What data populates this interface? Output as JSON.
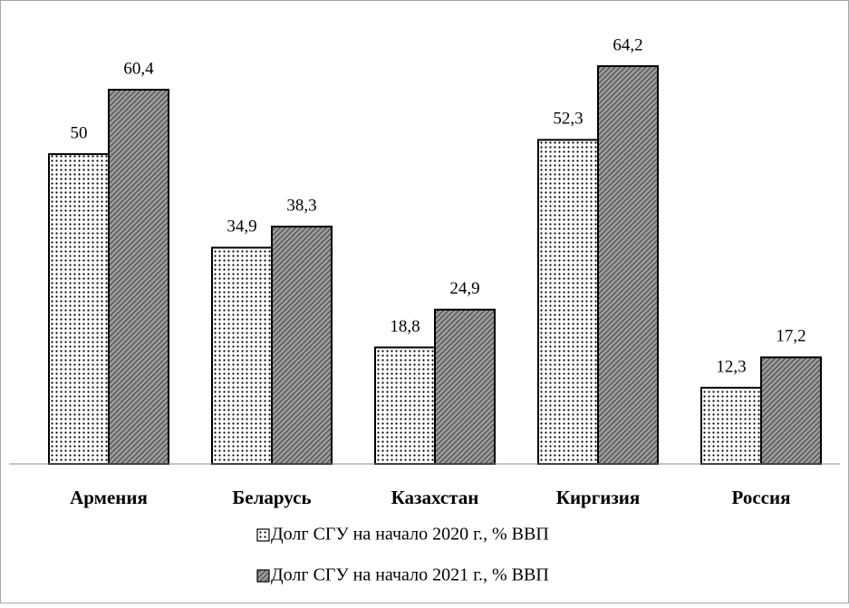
{
  "chart_data": {
    "type": "bar",
    "categories": [
      "Армения",
      "Беларусь",
      "Казахстан",
      "Киргизия",
      "Россия"
    ],
    "series": [
      {
        "name": "Долг СГУ на начало 2020 г., % ВВП",
        "color": "#ffffff",
        "pattern": "dots",
        "values": [
          50,
          34.9,
          18.8,
          52.3,
          12.3
        ],
        "value_labels": [
          "50",
          "34,9",
          "18,8",
          "52,3",
          "12,3"
        ]
      },
      {
        "name": "Долг СГУ на начало 2021 г., % ВВП",
        "color": "#606060",
        "pattern": "hatch",
        "values": [
          60.4,
          38.3,
          24.9,
          64.2,
          17.2
        ],
        "value_labels": [
          "60,4",
          "38,3",
          "24,9",
          "64,2",
          "17,2"
        ]
      }
    ],
    "legend": "bottom"
  }
}
